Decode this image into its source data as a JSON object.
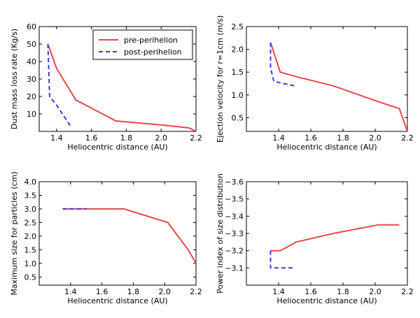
{
  "colors": {
    "pre": "#e8474b",
    "post": "#3a3ad8"
  },
  "legend": {
    "placement": "top-right",
    "entries": [
      "pre-perihelion",
      "post-perihelion"
    ]
  },
  "chart_data": [
    {
      "type": "line",
      "xlabel": "Heliocentric distance (AU)",
      "ylabel": "Dust mass loss rate (Kg/s)",
      "xlim": [
        1.3,
        2.2
      ],
      "ylim": [
        0,
        60
      ],
      "xticks": [
        "1.4",
        "1.6",
        "1.8",
        "2.0",
        "2.2"
      ],
      "yticks": [
        "10",
        "20",
        "30",
        "40",
        "50",
        "60"
      ],
      "series": [
        {
          "name": "pre-perihelion",
          "style": "solid",
          "x": [
            1.35,
            1.4,
            1.51,
            1.74,
            2.02,
            2.16,
            2.2
          ],
          "y": [
            50,
            36,
            18,
            6,
            3.5,
            2,
            0
          ]
        },
        {
          "name": "post-perihelion",
          "style": "dashed",
          "x": [
            1.35,
            1.36,
            1.4,
            1.48
          ],
          "y": [
            50,
            20,
            15,
            3
          ]
        }
      ]
    },
    {
      "type": "line",
      "xlabel": "Heliocentric distance (AU)",
      "ylabel": "Ejection velocity for r=1cm (m/s)",
      "xlim": [
        1.2,
        2.2
      ],
      "ylim": [
        0.2,
        2.5
      ],
      "xticks": [
        "1.4",
        "1.6",
        "1.8",
        "2.0",
        "2.2"
      ],
      "yticks": [
        "0.5",
        "1.0",
        "1.5",
        "2.0",
        "2.5"
      ],
      "series": [
        {
          "name": "pre-perihelion",
          "style": "solid",
          "x": [
            1.35,
            1.41,
            1.51,
            1.74,
            2.02,
            2.15,
            2.2
          ],
          "y": [
            2.15,
            1.5,
            1.4,
            1.2,
            0.85,
            0.7,
            0.2
          ]
        },
        {
          "name": "post-perihelion",
          "style": "dashed",
          "x": [
            1.35,
            1.35,
            1.37,
            1.43,
            1.5
          ],
          "y": [
            2.15,
            1.6,
            1.3,
            1.25,
            1.2
          ]
        }
      ]
    },
    {
      "type": "line",
      "xlabel": "Heliocentric distance (AU)",
      "ylabel": "Maximum size for particles (cm)",
      "xlim": [
        1.2,
        2.2
      ],
      "ylim": [
        0.2,
        4.0
      ],
      "xticks": [
        "1.4",
        "1.6",
        "1.8",
        "2.0",
        "2.2"
      ],
      "yticks": [
        "0.5",
        "1.0",
        "1.5",
        "2.0",
        "2.5",
        "3.0",
        "3.5",
        "4.0"
      ],
      "series": [
        {
          "name": "pre-perihelion",
          "style": "solid",
          "x": [
            1.35,
            1.51,
            1.74,
            2.02,
            2.15,
            2.2
          ],
          "y": [
            3.0,
            3.0,
            3.0,
            2.5,
            1.5,
            1.0
          ]
        },
        {
          "name": "post-perihelion",
          "style": "dashed",
          "x": [
            1.35,
            1.5
          ],
          "y": [
            3.0,
            3.0
          ]
        }
      ]
    },
    {
      "type": "line",
      "xlabel": "Heliocentric distance (AU)",
      "ylabel": "Power index of size distribution",
      "xlim": [
        1.2,
        2.2
      ],
      "ylim": [
        -3.0,
        -3.6
      ],
      "xticks": [
        "1.4",
        "1.6",
        "1.8",
        "2.0",
        "2.2"
      ],
      "yticks": [
        "−3.1",
        "−3.2",
        "−3.3",
        "−3.4",
        "−3.5",
        "−3.6"
      ],
      "series": [
        {
          "name": "pre-perihelion",
          "style": "solid",
          "x": [
            1.35,
            1.41,
            1.51,
            1.74,
            2.02,
            2.15
          ],
          "y": [
            -3.2,
            -3.2,
            -3.25,
            -3.3,
            -3.35,
            -3.35
          ]
        },
        {
          "name": "post-perihelion",
          "style": "dashed",
          "x": [
            1.35,
            1.35,
            1.5
          ],
          "y": [
            -3.2,
            -3.1,
            -3.1
          ]
        }
      ]
    }
  ]
}
